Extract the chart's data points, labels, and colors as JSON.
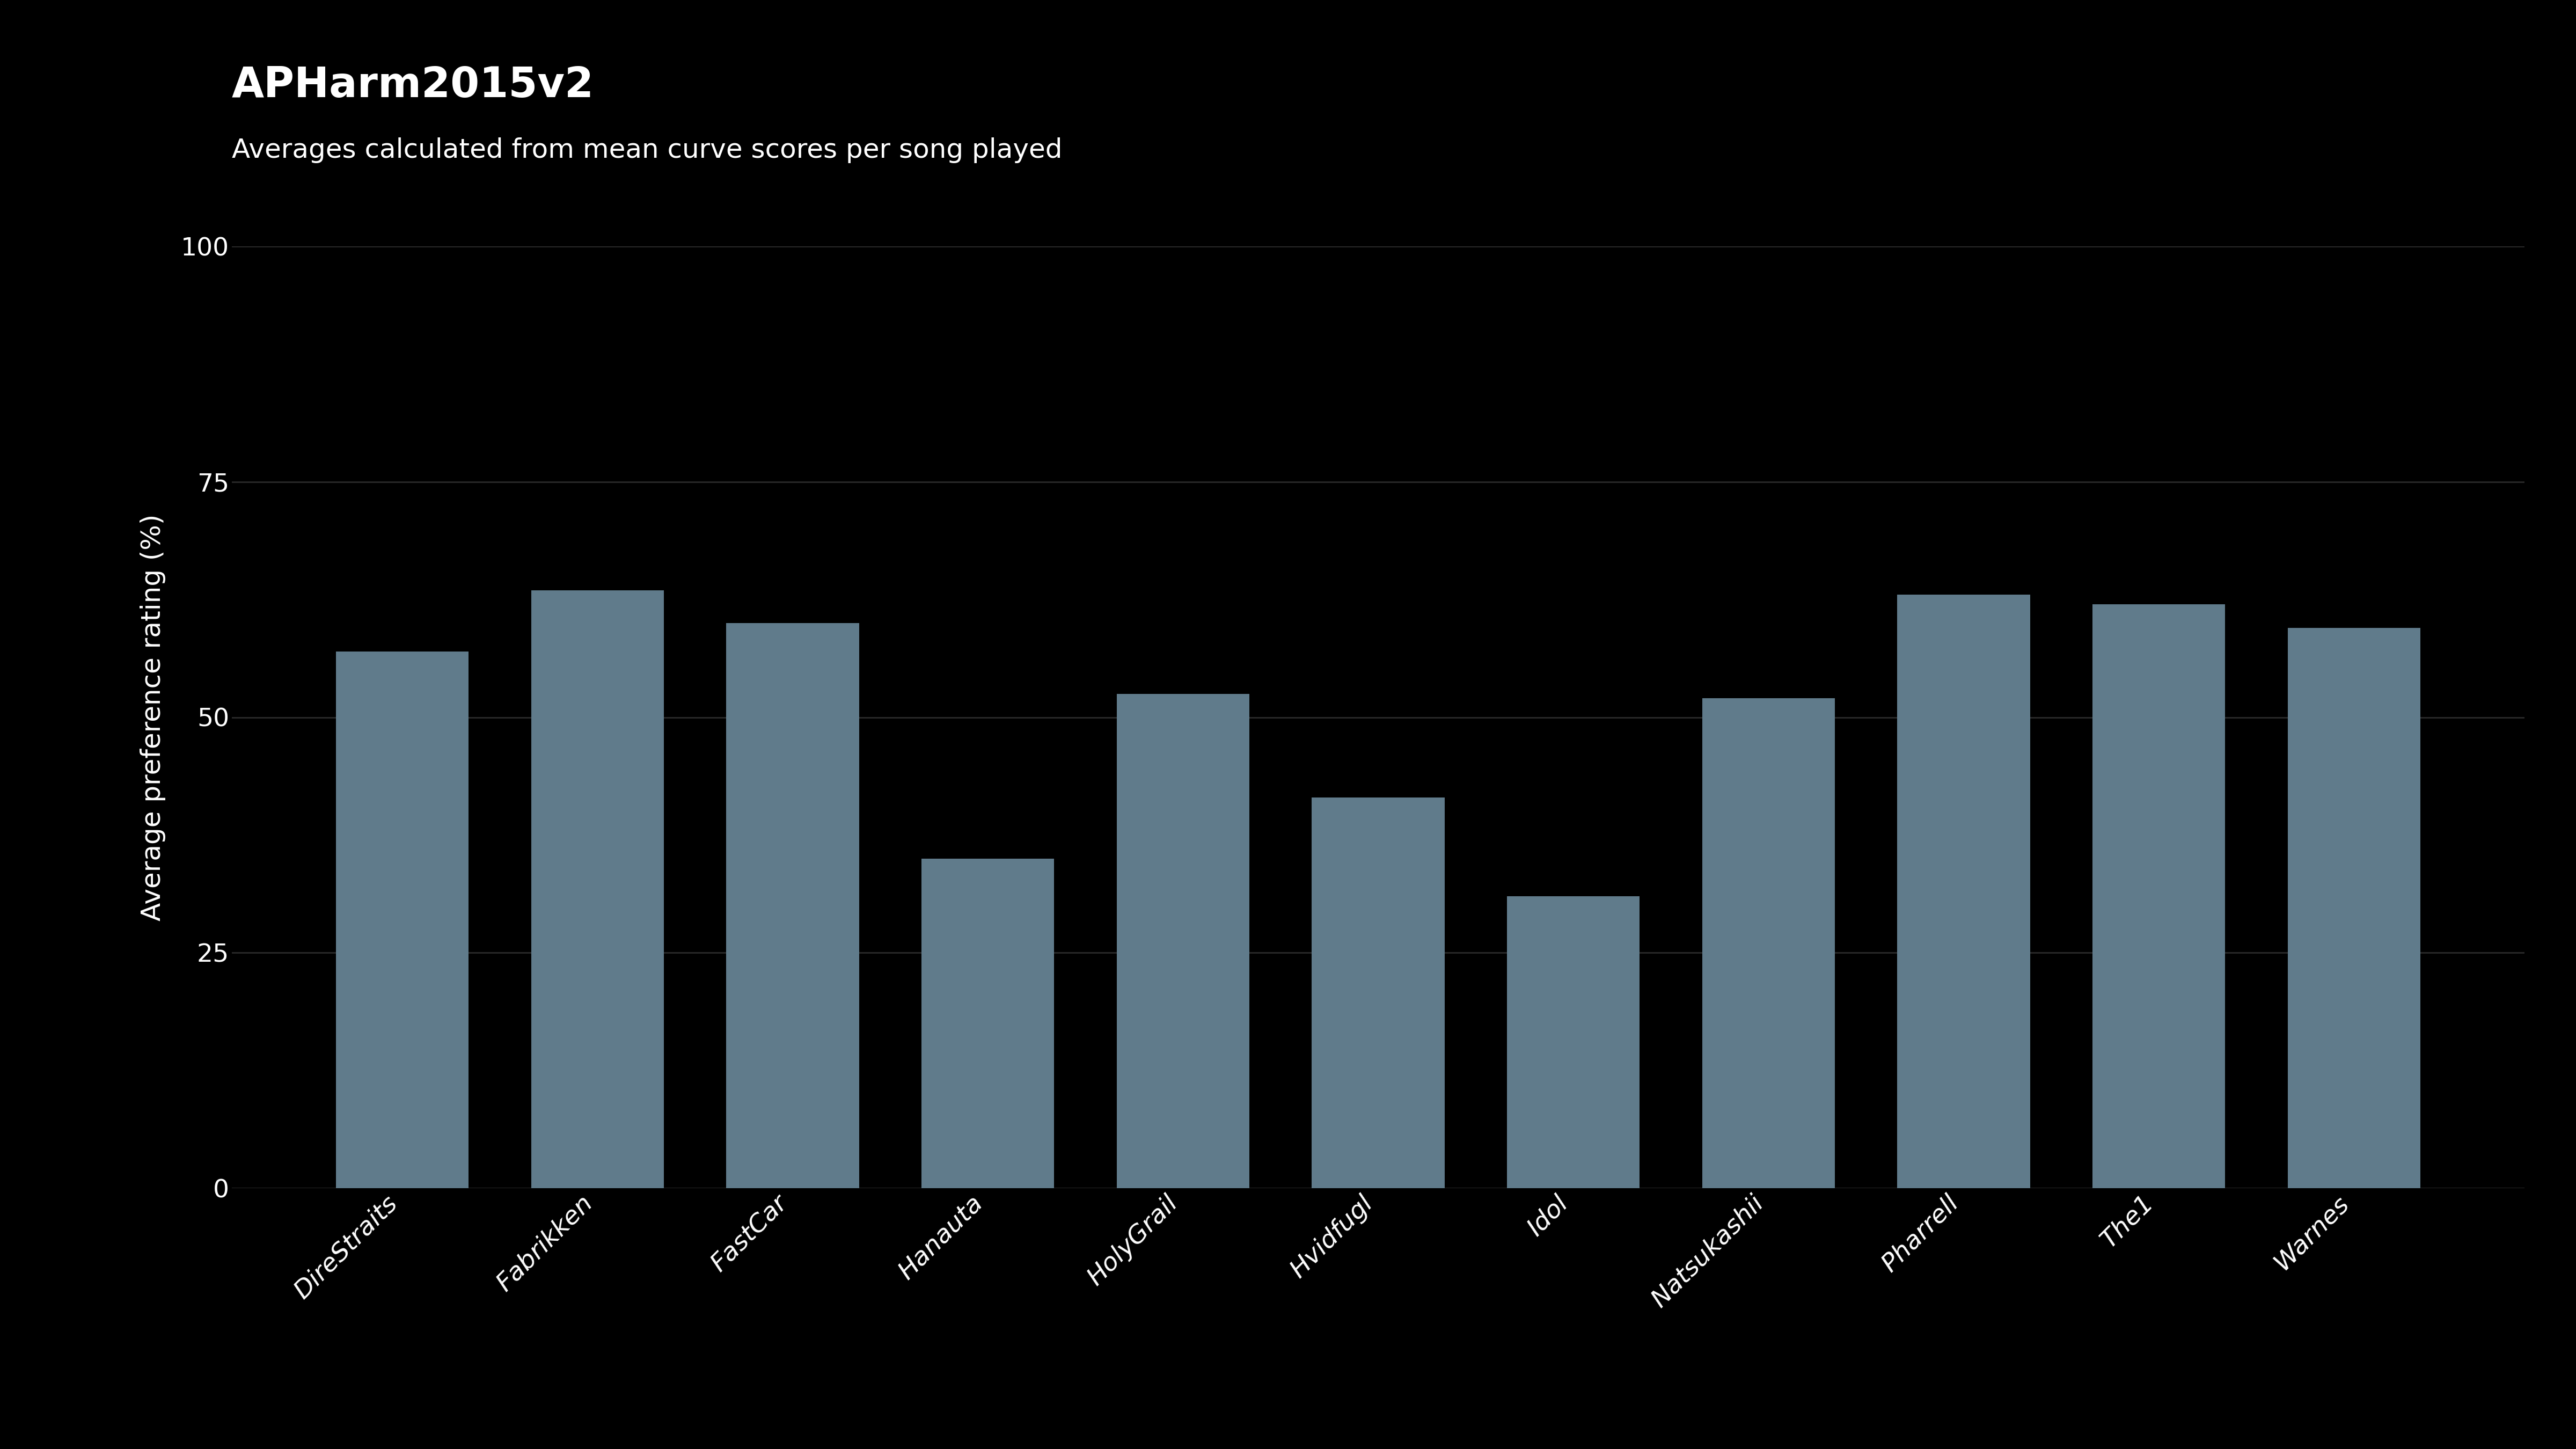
{
  "title": "APHarm2015v2",
  "subtitle": "Averages calculated from mean curve scores per song played",
  "categories": [
    "DireStraits",
    "Fabrikken",
    "FastCar",
    "Hanauta",
    "HolyGrail",
    "Hvidfugl",
    "Idol",
    "Natsukashii",
    "Pharrell",
    "The1",
    "Warnes"
  ],
  "values": [
    57.0,
    63.5,
    60.0,
    35.0,
    52.5,
    41.5,
    31.0,
    52.0,
    63.0,
    62.0,
    59.5
  ],
  "bar_color": "#607b8b",
  "background_color": "#000000",
  "text_color": "#ffffff",
  "grid_color": "#2a2a2a",
  "ylabel": "Average preference rating (%)",
  "ylim": [
    0,
    100
  ],
  "yticks": [
    0,
    25,
    50,
    75,
    100
  ],
  "title_fontsize": 56,
  "subtitle_fontsize": 36,
  "ylabel_fontsize": 36,
  "tick_fontsize": 34,
  "bar_width": 0.68
}
